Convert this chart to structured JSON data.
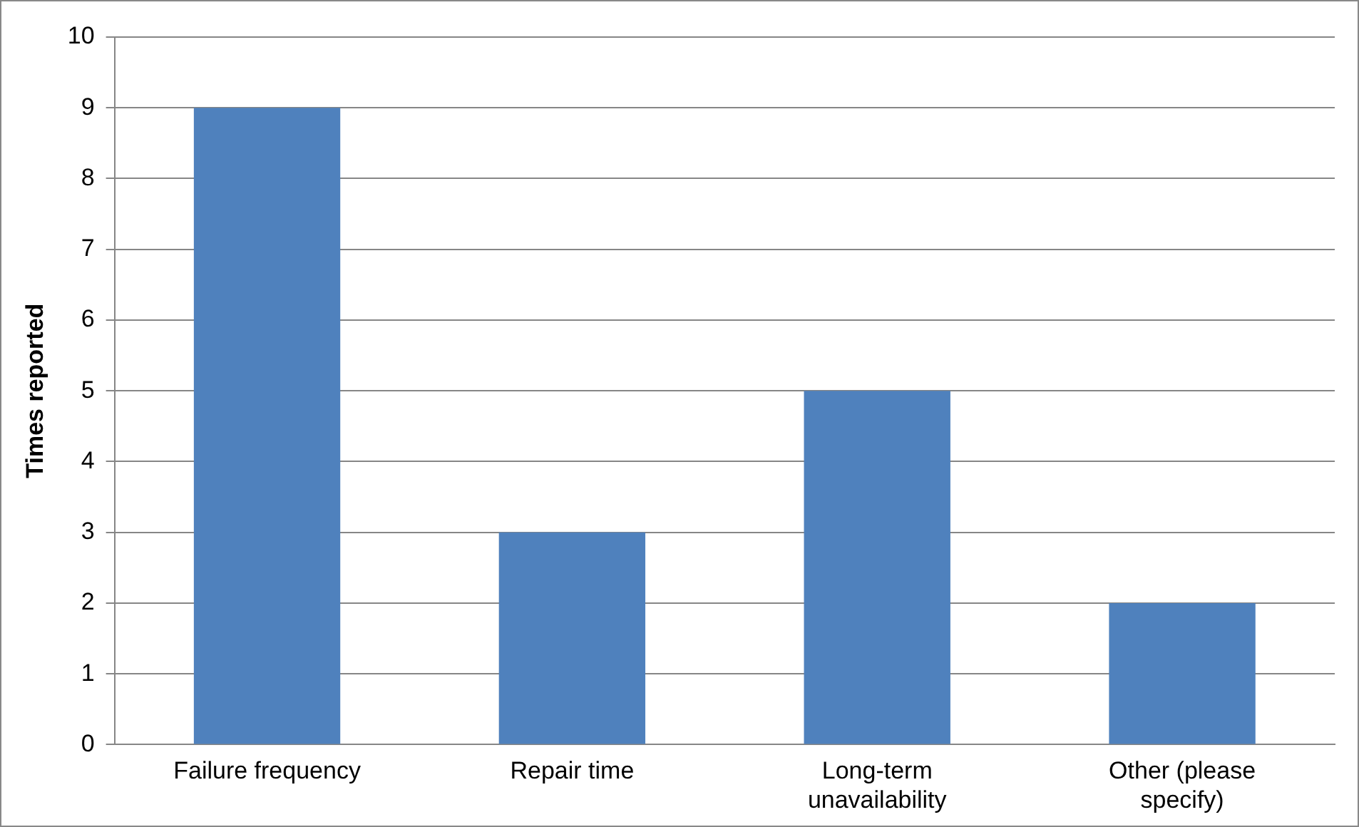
{
  "chart_data": {
    "type": "bar",
    "ylabel": "Times reported",
    "categories": [
      "Failure frequency",
      "Repair time",
      "Long-term unavailability",
      "Other (please specify)"
    ],
    "values": [
      9,
      3,
      5,
      2
    ],
    "color": "#4f81bd",
    "ylim": [
      0,
      10
    ],
    "yticks": [
      0,
      1,
      2,
      3,
      4,
      5,
      6,
      7,
      8,
      9,
      10
    ],
    "grid": "y",
    "legend": false
  }
}
